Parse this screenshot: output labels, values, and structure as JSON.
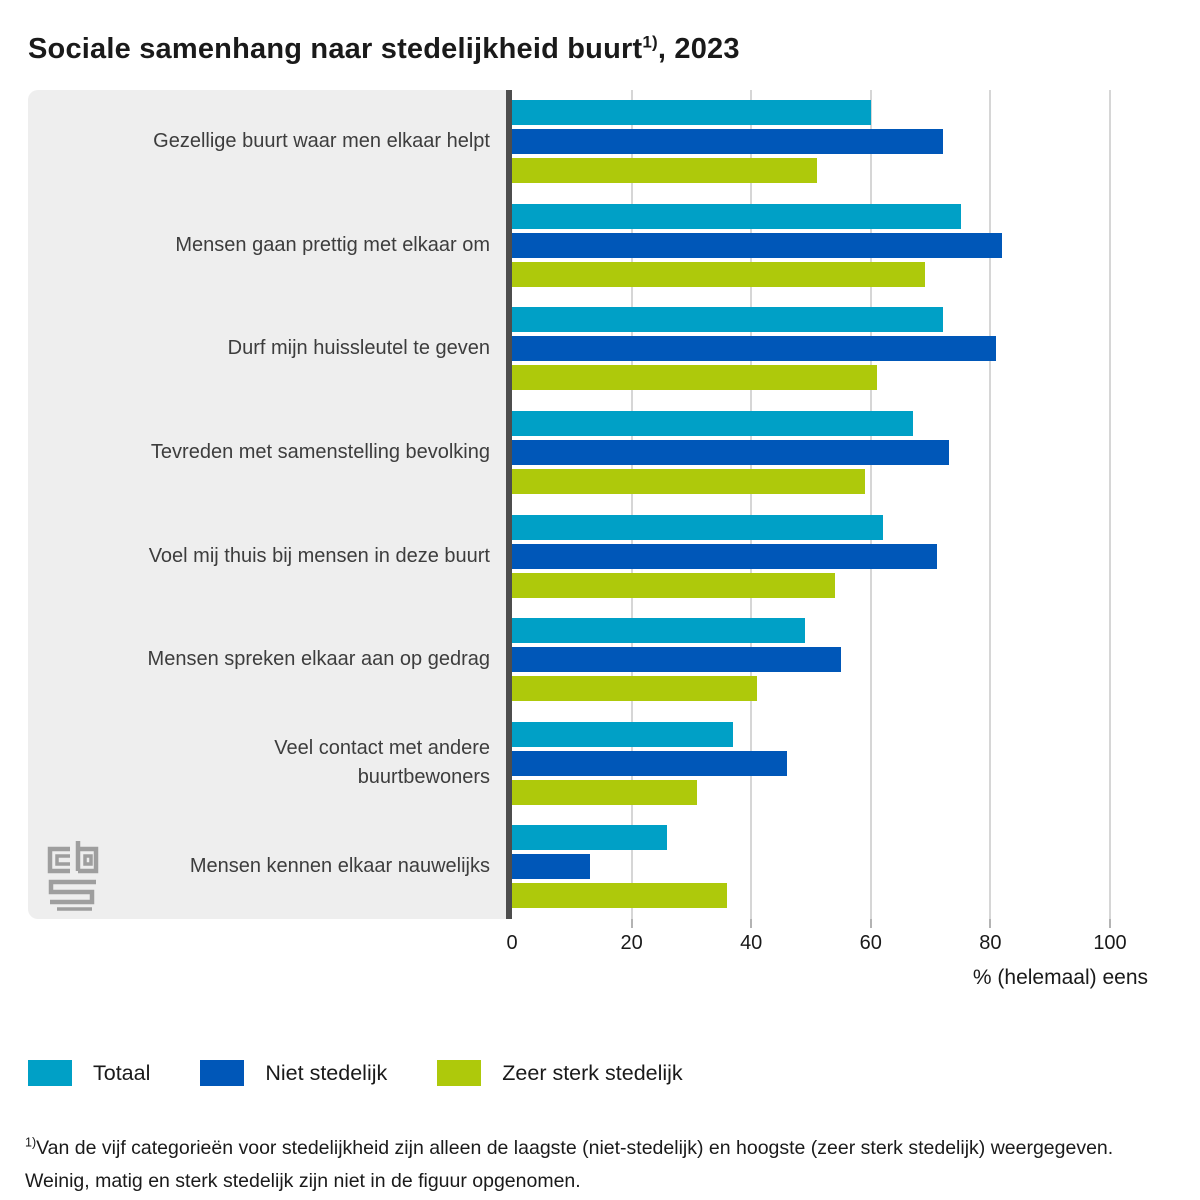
{
  "title": {
    "text": "Sociale samenhang naar stedelijkheid buurt",
    "superscript": "1)",
    "suffix": ", 2023"
  },
  "chart_data": {
    "type": "bar",
    "orientation": "horizontal",
    "title": "Sociale samenhang naar stedelijkheid buurt, 2023",
    "categories": [
      "Gezellige buurt waar men elkaar helpt",
      "Mensen gaan prettig met elkaar om",
      "Durf mijn huissleutel te geven",
      "Tevreden met samenstelling bevolking",
      "Voel mij thuis bij mensen in deze buurt",
      "Mensen spreken elkaar aan op gedrag",
      "Veel contact met andere\nbuurtbewoners",
      "Mensen kennen elkaar nauwelijks"
    ],
    "series": [
      {
        "name": "Totaal",
        "color": "#00a0c6",
        "values": [
          60,
          75,
          72,
          67,
          62,
          49,
          37,
          26
        ]
      },
      {
        "name": "Niet stedelijk",
        "color": "#0057b8",
        "values": [
          72,
          82,
          81,
          73,
          71,
          55,
          46,
          13
        ]
      },
      {
        "name": "Zeer sterk stedelijk",
        "color": "#aec90b",
        "values": [
          51,
          69,
          61,
          59,
          54,
          41,
          31,
          36
        ]
      }
    ],
    "xlabel": "% (helemaal) eens",
    "xlim": [
      0,
      100
    ],
    "xticks": [
      0,
      20,
      40,
      60,
      80,
      100
    ],
    "grid": true,
    "legend_position": "bottom-left"
  },
  "footnote": {
    "superscript": "1)",
    "text": "Van de vijf categorieën voor stedelijkheid zijn alleen de laagste (niet-stedelijk) en hoogste (zeer sterk stedelijk) weergegeven. Weinig, matig en sterk stedelijk zijn niet in de figuur opgenomen."
  }
}
